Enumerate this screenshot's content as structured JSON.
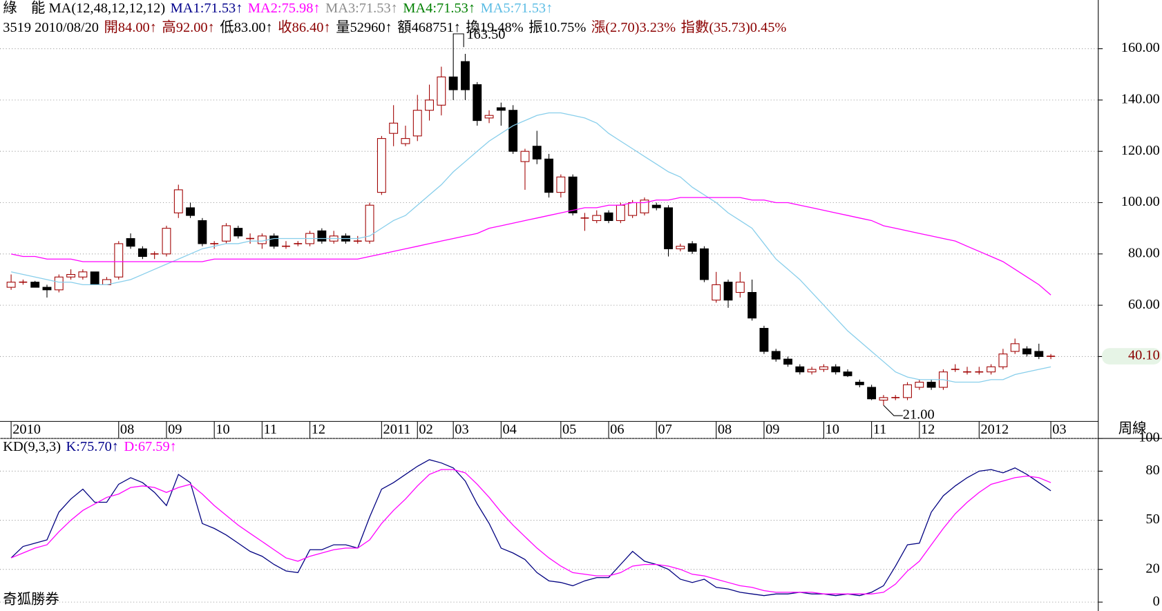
{
  "chart_data": [
    {
      "type": "candlestick",
      "header_lines": [
        [
          {
            "text": "綠　能 MA(12,48,12,12,12)",
            "color": "#000000"
          },
          {
            "text": "MA1:71.53↑",
            "color": "#00008b"
          },
          {
            "text": "MA2:75.98↑",
            "color": "#ff00ff"
          },
          {
            "text": "MA3:71.53↑",
            "color": "#8c8c8c"
          },
          {
            "text": "MA4:71.53↑",
            "color": "#008000"
          },
          {
            "text": "MA5:71.53↑",
            "color": "#5bbce4"
          }
        ],
        [
          {
            "text": "3519 2010/08/20",
            "color": "#000000"
          },
          {
            "text": "開84.00↑",
            "color": "#8b0000"
          },
          {
            "text": "高92.00↑",
            "color": "#8b0000"
          },
          {
            "text": "低83.00↑",
            "color": "#000000"
          },
          {
            "text": "收86.40↑",
            "color": "#8b0000"
          },
          {
            "text": "量52960↑",
            "color": "#000000"
          },
          {
            "text": "額468751↑",
            "color": "#000000"
          },
          {
            "text": "換19.48%",
            "color": "#000000"
          },
          {
            "text": "振10.75%",
            "color": "#000000"
          },
          {
            "text": "漲(2.70)3.23%",
            "color": "#8b0000"
          },
          {
            "text": "指數(35.73)0.45%",
            "color": "#8b0000"
          }
        ]
      ],
      "categories": [
        "2010",
        null,
        null,
        null,
        null,
        null,
        null,
        null,
        null,
        "08",
        null,
        null,
        null,
        "09",
        null,
        null,
        null,
        "10",
        null,
        null,
        null,
        "11",
        null,
        null,
        null,
        "12",
        null,
        null,
        null,
        null,
        null,
        "2011",
        null,
        null,
        "02",
        null,
        null,
        "03",
        null,
        null,
        null,
        "04",
        null,
        null,
        null,
        null,
        "05",
        null,
        null,
        null,
        "06",
        null,
        null,
        null,
        "07",
        null,
        null,
        null,
        null,
        "08",
        null,
        null,
        null,
        "09",
        null,
        null,
        null,
        null,
        "10",
        null,
        null,
        null,
        "11",
        null,
        null,
        null,
        "12",
        null,
        null,
        null,
        null,
        "2012",
        null,
        null,
        null,
        null,
        null,
        "03"
      ],
      "open": [
        67,
        69,
        69,
        67,
        66,
        71,
        71,
        73,
        68,
        71,
        86,
        82,
        80,
        80,
        96,
        98,
        93,
        84,
        85,
        90,
        86,
        84,
        87,
        83,
        84,
        84,
        89,
        85,
        87,
        85,
        85,
        104,
        127,
        123,
        126,
        136,
        138,
        149,
        155,
        146,
        133,
        137,
        136,
        116,
        122,
        117,
        104,
        110,
        94,
        93,
        96,
        93,
        95,
        96,
        99,
        98,
        82,
        84,
        82,
        62,
        69,
        65,
        65,
        51,
        42,
        39,
        36,
        34,
        35,
        36,
        34,
        30,
        28,
        23,
        24,
        24,
        28,
        30,
        28,
        35,
        34,
        34,
        34,
        36,
        42,
        43,
        42,
        40.1
      ],
      "high": [
        72,
        70,
        69.5,
        68,
        72,
        74,
        74,
        73,
        71,
        85,
        88,
        83,
        81,
        91,
        107,
        100,
        94,
        85,
        92,
        91,
        88,
        88,
        88,
        85,
        85,
        89,
        90,
        89,
        88,
        87,
        100,
        126,
        138,
        130,
        142,
        146,
        153,
        163.5,
        158,
        147,
        136,
        139,
        138,
        121,
        128,
        119,
        111,
        111,
        96,
        97,
        97,
        100,
        101,
        102,
        100,
        99,
        84,
        85,
        83,
        73,
        70,
        73,
        70,
        52,
        43,
        40,
        37,
        36,
        37,
        37,
        35,
        31,
        29,
        25,
        25,
        30,
        31,
        31,
        35,
        37,
        36,
        36,
        37,
        43,
        47,
        44,
        45,
        41
      ],
      "low": [
        66,
        68,
        67,
        63,
        65,
        70,
        70,
        68,
        68,
        70,
        82,
        78,
        78,
        79,
        94,
        94,
        83,
        82,
        84,
        86,
        84,
        82,
        82,
        82,
        83,
        83,
        84,
        84,
        84,
        84,
        84,
        103,
        122,
        122,
        124,
        132,
        134,
        140,
        140,
        130,
        131,
        130,
        119,
        105,
        115,
        102,
        102,
        95,
        89,
        92,
        92,
        92,
        94,
        95,
        97,
        79,
        81,
        80,
        69,
        61,
        59,
        63,
        54,
        41,
        38,
        36,
        33,
        33,
        34,
        33,
        32,
        28,
        23,
        21,
        23,
        23,
        27,
        27,
        27,
        34,
        33,
        33,
        33,
        35,
        41,
        40,
        39,
        39
      ],
      "close": [
        69,
        69,
        67,
        66,
        71,
        72,
        73,
        68,
        70,
        84,
        83,
        79,
        80,
        90,
        105,
        95,
        84,
        84,
        91,
        87,
        86,
        87,
        83,
        83,
        84,
        88,
        85,
        87,
        85,
        85,
        99,
        125,
        131,
        125,
        136,
        140,
        149,
        144,
        144,
        132,
        134,
        136,
        120,
        120,
        117,
        104,
        110,
        96,
        94,
        95,
        93,
        99,
        100,
        101,
        98,
        82,
        83,
        81,
        70,
        68,
        62,
        69,
        55,
        42,
        39,
        37,
        34,
        35,
        36,
        34,
        32.5,
        29,
        23.5,
        24,
        24,
        29,
        30,
        28,
        34,
        35,
        34,
        34,
        36,
        41,
        45,
        41,
        40,
        40.1
      ],
      "up_color": "#a00000",
      "down_color": "#000000",
      "series": [
        {
          "color": "#87ceeb",
          "values": [
            73,
            72,
            71,
            70,
            69,
            69,
            68,
            68,
            68,
            69,
            70,
            72,
            74,
            76,
            78,
            80,
            82,
            83,
            84,
            84,
            85,
            85,
            86,
            86,
            86,
            86,
            86,
            86,
            86,
            86,
            87,
            90,
            93,
            95,
            99,
            103,
            107,
            112,
            116,
            120,
            124,
            127,
            130,
            132,
            134,
            135,
            135,
            134,
            133,
            131,
            127,
            124,
            121,
            118,
            115,
            112,
            110,
            106,
            103,
            100,
            96,
            93,
            90,
            84,
            78,
            74,
            70,
            65,
            60,
            55,
            50,
            46,
            42,
            38,
            34,
            32,
            31,
            31,
            31,
            30,
            30,
            30,
            31,
            31,
            33,
            34,
            35,
            36
          ]
        },
        {
          "color": "#ff00ff",
          "values": [
            80,
            79,
            79,
            78,
            78,
            78,
            77,
            77,
            77,
            77,
            77,
            77,
            77,
            77,
            77,
            77,
            77,
            78,
            78,
            78,
            78,
            78,
            78,
            78,
            78,
            78,
            78,
            78,
            78,
            78,
            79,
            80,
            81,
            82,
            83,
            84,
            85,
            86,
            87,
            88,
            90,
            91,
            92,
            93,
            94,
            95,
            96,
            97,
            98,
            98,
            99,
            99,
            100,
            100,
            101,
            101,
            102,
            102,
            102,
            102,
            102,
            102,
            101,
            101,
            100,
            100,
            99,
            98,
            97,
            96,
            95,
            94,
            93,
            91,
            90,
            89,
            88,
            87,
            86,
            85,
            83,
            81,
            79,
            77,
            74,
            71,
            68,
            64
          ]
        }
      ],
      "ylim": [
        15,
        166
      ],
      "yticks": [
        {
          "value": 40,
          "label": "40.00"
        },
        {
          "value": 60,
          "label": "60.00"
        },
        {
          "value": 80,
          "label": "80.00"
        },
        {
          "value": 100,
          "label": "100.00"
        },
        {
          "value": 120,
          "label": "120.00"
        },
        {
          "value": 140,
          "label": "140.00"
        },
        {
          "value": 160,
          "label": "160.00"
        }
      ],
      "grid": true,
      "high_label": {
        "value": 163.5,
        "label": "163.50"
      },
      "low_label": {
        "value": 21,
        "label": "21.00"
      },
      "last_price": {
        "value": 40.1,
        "label": "40.10"
      },
      "x_axis_label": "周線"
    },
    {
      "type": "line",
      "header_lines": [
        [
          {
            "text": "KD(9,3,3)",
            "color": "#000000"
          },
          {
            "text": "K:75.70↑",
            "color": "#00008b"
          },
          {
            "text": "D:67.59↑",
            "color": "#ff00ff"
          }
        ]
      ],
      "series": [
        {
          "color": "#000080",
          "values": [
            27,
            34,
            36,
            38,
            55,
            63,
            69,
            61,
            61,
            72,
            76,
            73,
            67,
            59,
            78,
            73,
            48,
            45,
            41,
            36,
            31,
            28,
            23,
            19,
            18,
            32,
            32,
            35,
            35,
            33,
            52,
            69,
            73,
            78,
            83,
            87,
            85,
            82,
            74,
            60,
            48,
            33,
            30,
            26,
            18,
            13,
            12,
            10,
            13,
            15,
            15,
            23,
            31,
            25,
            23,
            20,
            14,
            12,
            14,
            9,
            8,
            6,
            5,
            4,
            5,
            5,
            6,
            5,
            5,
            4,
            5,
            4,
            6,
            10,
            22,
            35,
            36,
            55,
            65,
            71,
            76,
            80,
            81,
            79,
            82,
            78,
            73,
            68
          ]
        },
        {
          "color": "#ff00ff",
          "values": [
            27,
            30,
            33,
            35,
            43,
            50,
            56,
            60,
            64,
            66,
            70,
            71,
            70,
            67,
            70,
            72,
            66,
            59,
            53,
            47,
            42,
            37,
            32,
            27,
            25,
            28,
            30,
            32,
            33,
            33,
            38,
            48,
            56,
            63,
            71,
            78,
            81,
            81,
            79,
            72,
            64,
            55,
            47,
            40,
            33,
            27,
            22,
            18,
            17,
            16,
            16,
            18,
            22,
            23,
            23,
            22,
            20,
            17,
            16,
            14,
            12,
            10,
            9,
            7,
            6,
            6,
            6,
            6,
            5,
            5,
            5,
            5,
            5,
            6,
            11,
            19,
            25,
            35,
            45,
            54,
            61,
            67,
            72,
            74,
            76,
            77,
            76,
            73
          ]
        }
      ],
      "ylim": [
        0,
        100
      ],
      "yticks": [
        0,
        20,
        50,
        80,
        100
      ],
      "grid": true
    }
  ],
  "footer": "奇狐勝券"
}
